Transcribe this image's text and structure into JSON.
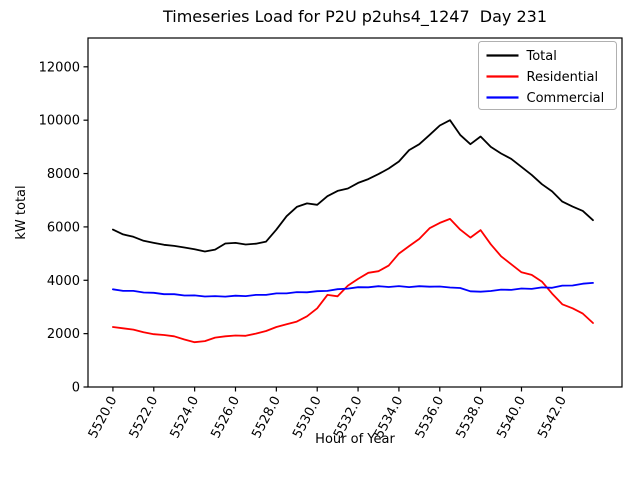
{
  "window": {
    "background_color": "#ffffff"
  },
  "chart_data": {
    "type": "line",
    "title": "Timeseries Load for P2U p2uhs4_1247  Day 231",
    "xlabel": "Hour of Year",
    "ylabel": "kW total",
    "xlim": [
      5518.78,
      5544.92
    ],
    "ylim": [
      0,
      13080
    ],
    "grid": false,
    "legend_position": "upper right",
    "x_ticks": [
      5520,
      5522,
      5524,
      5526,
      5528,
      5530,
      5532,
      5534,
      5536,
      5538,
      5540,
      5542
    ],
    "x_tick_labels": [
      "5520.0",
      "5522.0",
      "5524.0",
      "5526.0",
      "5528.0",
      "5530.0",
      "5532.0",
      "5534.0",
      "5536.0",
      "5538.0",
      "5540.0",
      "5542.0"
    ],
    "y_ticks": [
      0,
      2000,
      4000,
      6000,
      8000,
      10000,
      12000
    ],
    "y_tick_labels": [
      "0",
      "2000",
      "4000",
      "6000",
      "8000",
      "10000",
      "12000"
    ],
    "x_start": 5520.0,
    "x_step": 0.5,
    "series": [
      {
        "name": "Total",
        "color": "#000000",
        "values": [
          5900,
          5720,
          5630,
          5480,
          5400,
          5330,
          5290,
          5230,
          5160,
          5080,
          5150,
          5380,
          5400,
          5340,
          5370,
          5450,
          5900,
          6400,
          6750,
          6880,
          6830,
          7150,
          7350,
          7440,
          7650,
          7790,
          7980,
          8190,
          8450,
          8880,
          9100,
          9450,
          9800,
          10000,
          9450,
          9100,
          9390,
          9000,
          8750,
          8550,
          8250,
          7950,
          7600,
          7330,
          6950,
          6760,
          6600,
          6250
        ]
      },
      {
        "name": "Residential",
        "color": "#ff0000",
        "values": [
          2250,
          2200,
          2150,
          2050,
          1980,
          1950,
          1900,
          1780,
          1680,
          1720,
          1850,
          1900,
          1930,
          1920,
          2000,
          2100,
          2250,
          2350,
          2450,
          2650,
          2950,
          3450,
          3400,
          3800,
          4050,
          4280,
          4340,
          4550,
          5000,
          5280,
          5550,
          5950,
          6150,
          6300,
          5900,
          5600,
          5880,
          5350,
          4900,
          4600,
          4300,
          4200,
          3950,
          3500,
          3100,
          2950,
          2750,
          2400
        ]
      },
      {
        "name": "Commercial",
        "color": "#0000ff",
        "values": [
          3662,
          3603,
          3602,
          3543,
          3532,
          3478,
          3477,
          3428,
          3432,
          3393,
          3407,
          3388,
          3422,
          3408,
          3452,
          3453,
          3507,
          3508,
          3557,
          3548,
          3592,
          3603,
          3667,
          3688,
          3742,
          3738,
          3777,
          3748,
          3782,
          3743,
          3777,
          3758,
          3767,
          3728,
          3712,
          3588,
          3572,
          3598,
          3652,
          3638,
          3692,
          3678,
          3732,
          3718,
          3802,
          3803,
          3872,
          3900
        ]
      }
    ]
  }
}
